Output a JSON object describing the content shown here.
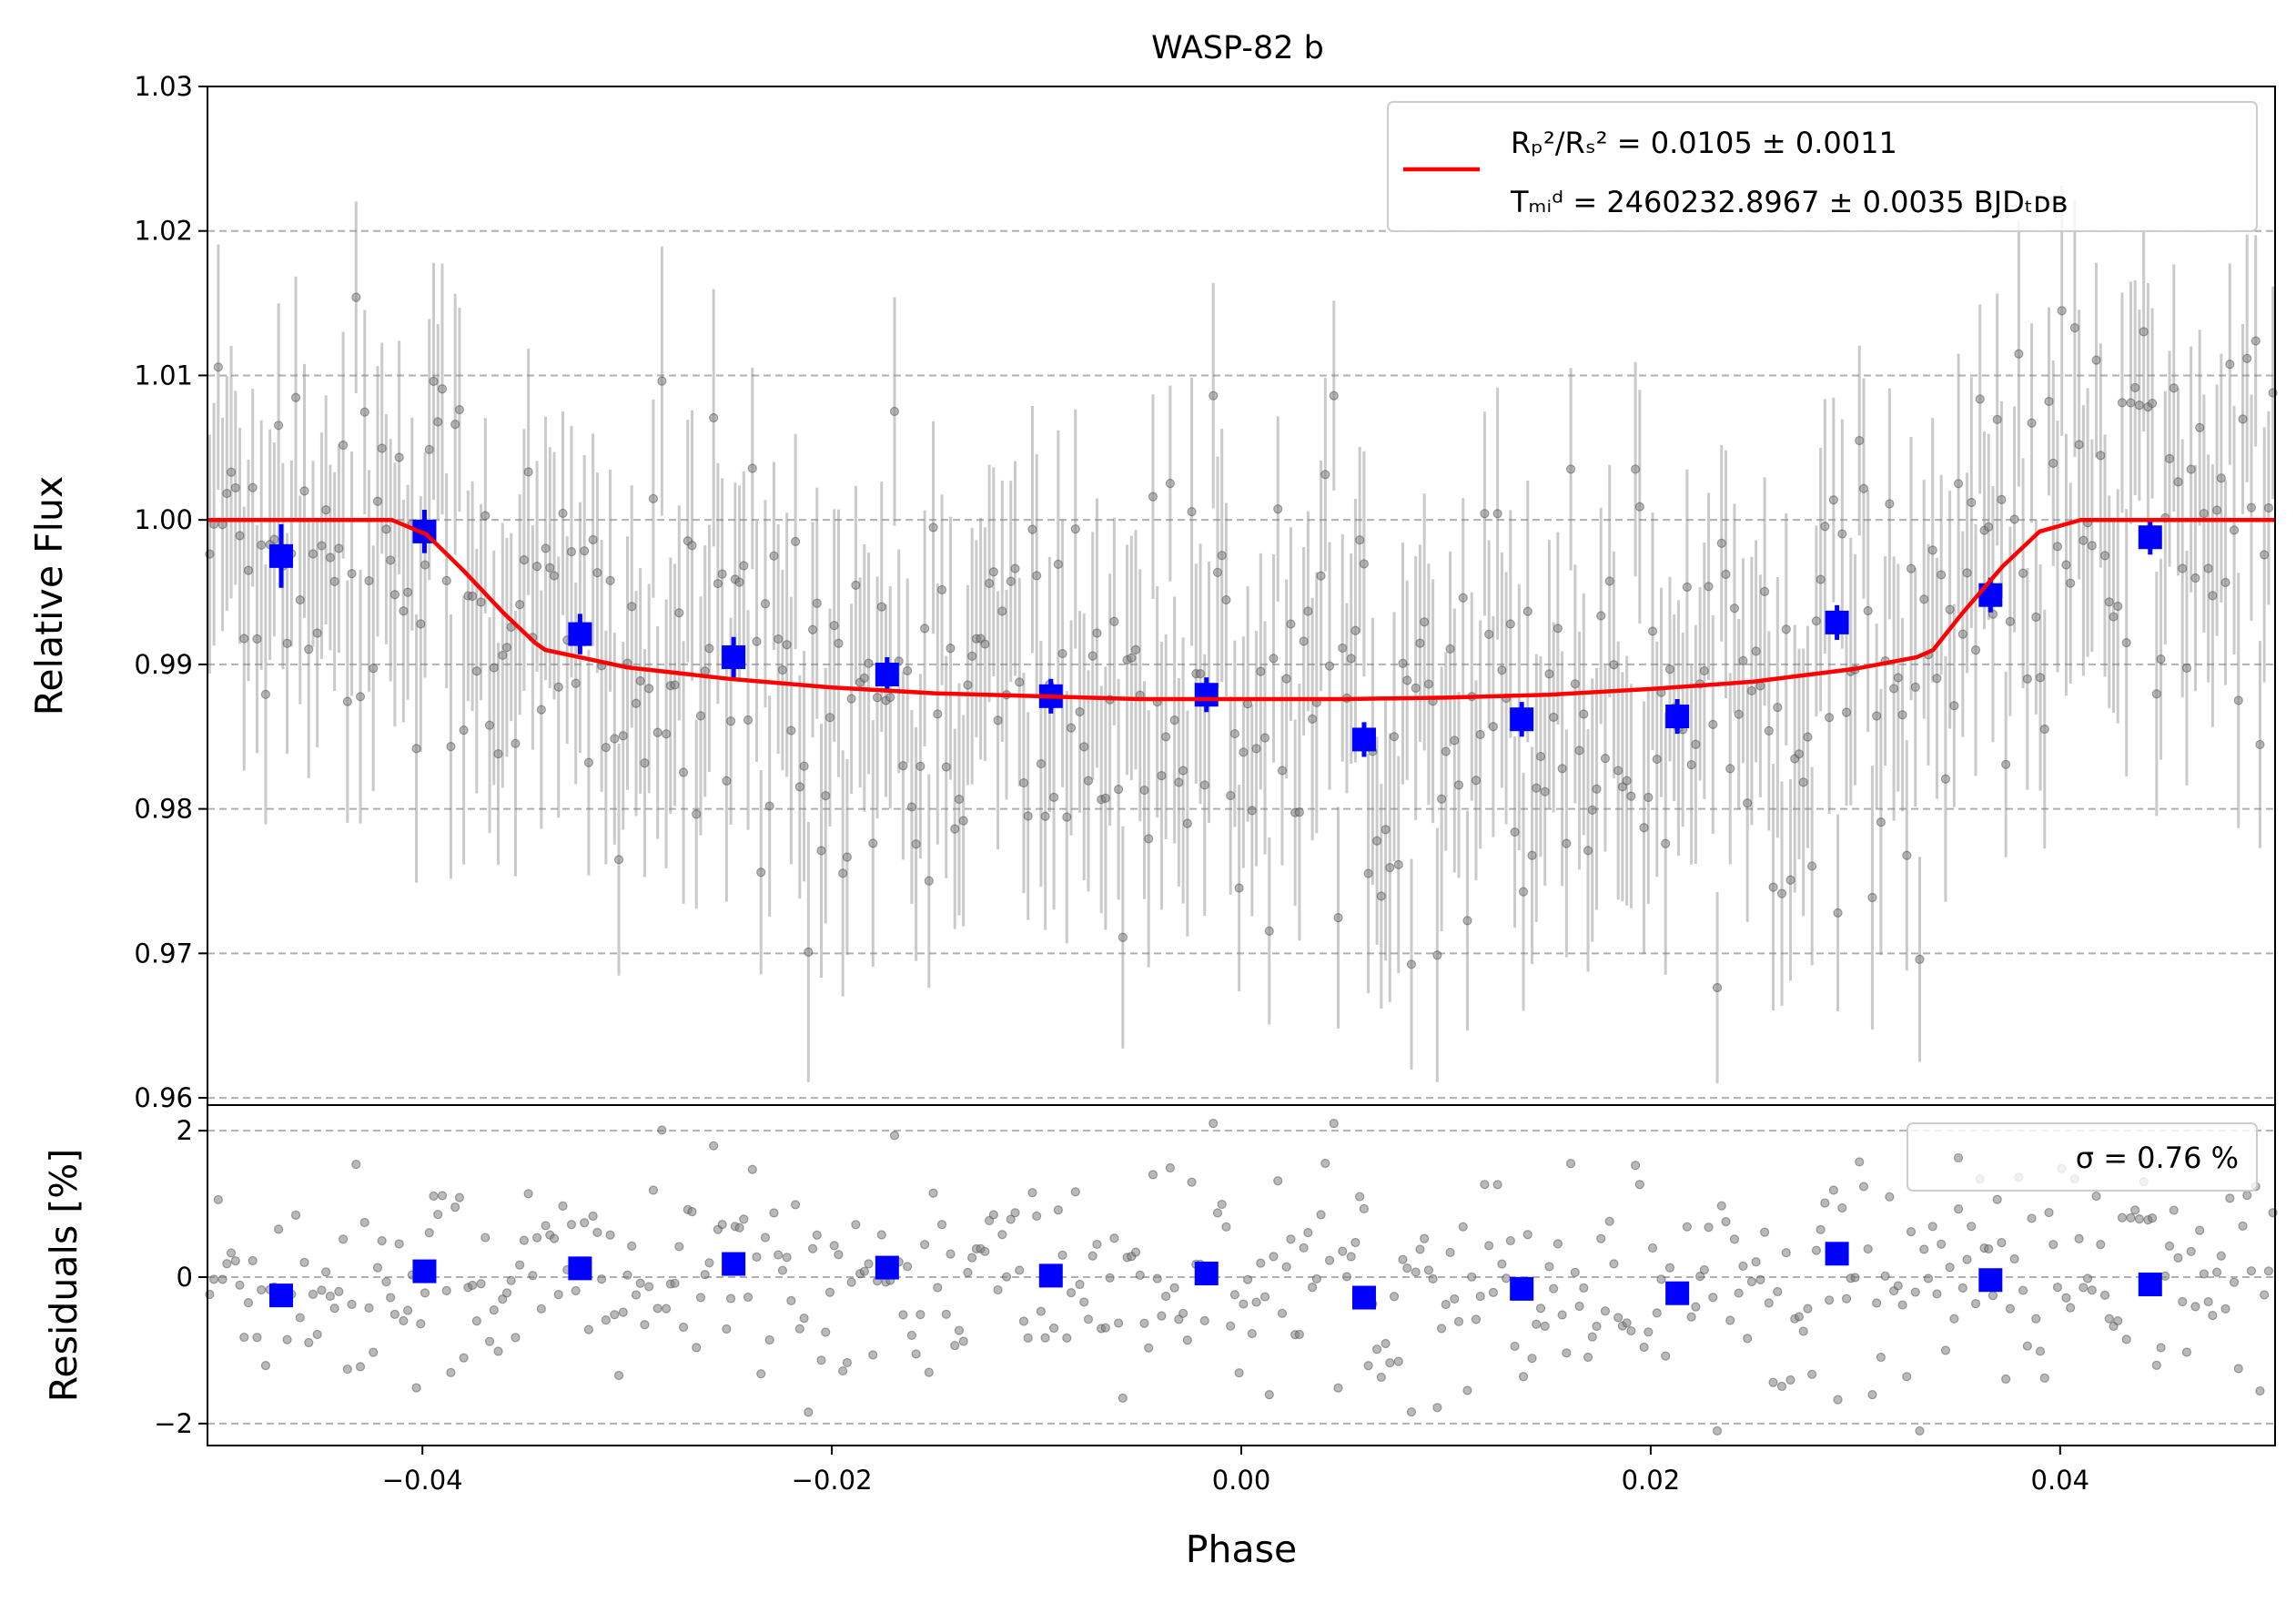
{
  "chart_data": {
    "type": "scatter",
    "title": "WASP-82 b",
    "xlabel": "Phase",
    "main_panel": {
      "ylabel": "Relative Flux",
      "xlim": [
        -0.0505,
        0.0505
      ],
      "ylim": [
        0.9595,
        1.03
      ],
      "x_ticks": [
        -0.04,
        -0.02,
        0.0,
        0.02,
        0.04
      ],
      "x_tick_labels": [
        "−0.04",
        "−0.02",
        "0.00",
        "0.02",
        "0.04"
      ],
      "y_ticks": [
        0.96,
        0.97,
        0.98,
        0.99,
        1.0,
        1.01,
        1.02,
        1.03
      ],
      "y_tick_labels": [
        "0.96",
        "0.97",
        "0.98",
        "0.99",
        "1.00",
        "1.01",
        "1.02",
        "1.03"
      ],
      "grid": "horizontal dashed",
      "legend_placement": "top-right",
      "legend_lines": [
        {
          "label": "Rₚ²/Rₛ² = 0.0105 ± 0.0011"
        },
        {
          "label": "Tₘᵢᵈ = 2460232.8967 ± 0.0035 BJDₜᴅʙ"
        }
      ],
      "model": {
        "color": "#ff0000",
        "x": [
          -0.0505,
          -0.0415,
          -0.0398,
          -0.038,
          -0.036,
          -0.0345,
          -0.034,
          -0.03,
          -0.025,
          -0.02,
          -0.015,
          -0.01,
          -0.005,
          0.0,
          0.005,
          0.01,
          0.015,
          0.02,
          0.025,
          0.03,
          0.033,
          0.0338,
          0.0352,
          0.0372,
          0.039,
          0.041,
          0.0505
        ],
        "y": [
          1.0,
          1.0,
          0.999,
          0.9965,
          0.9935,
          0.9915,
          0.991,
          0.9898,
          0.989,
          0.9884,
          0.988,
          0.9878,
          0.9876,
          0.9876,
          0.9876,
          0.9877,
          0.9879,
          0.9883,
          0.9888,
          0.9897,
          0.9905,
          0.991,
          0.9935,
          0.9968,
          0.9992,
          1.0,
          1.0
        ]
      },
      "binned": {
        "color": "#0000ff",
        "x": [
          -0.0469,
          -0.0399,
          -0.0323,
          -0.0248,
          -0.0173,
          -0.0093,
          -0.0017,
          0.006,
          0.0137,
          0.0213,
          0.0291,
          0.0366,
          0.0444
        ],
        "y": [
          0.9975,
          0.9992,
          0.9921,
          0.9905,
          0.9893,
          0.9878,
          0.9879,
          0.9848,
          0.9862,
          0.9864,
          0.9929,
          0.9948,
          0.9988
        ],
        "yerr": [
          0.0022,
          0.0015,
          0.0014,
          0.0014,
          0.0012,
          0.0012,
          0.0012,
          0.0012,
          0.0012,
          0.0012,
          0.0012,
          0.0012,
          0.0012
        ]
      },
      "raw_points": {
        "color": "#000000",
        "count": 480,
        "typical_yerr": 0.0075,
        "scatter_pct": 0.76
      }
    },
    "residual_panel": {
      "ylabel": "Residuals [%]",
      "ylim": [
        -2.3,
        2.35
      ],
      "y_ticks": [
        -2,
        0,
        2
      ],
      "y_tick_labels": [
        "−2",
        "0",
        "2"
      ],
      "legend_label": "σ = 0.76 %",
      "legend_placement": "top-right",
      "binned": {
        "color": "#0000ff",
        "x": [
          -0.0469,
          -0.0399,
          -0.0323,
          -0.0248,
          -0.0173,
          -0.0093,
          -0.0017,
          0.006,
          0.0137,
          0.0213,
          0.0291,
          0.0366,
          0.0444
        ],
        "y": [
          -0.25,
          0.08,
          0.12,
          0.18,
          0.13,
          0.02,
          0.05,
          -0.28,
          -0.16,
          -0.22,
          0.32,
          -0.04,
          -0.1
        ]
      }
    }
  }
}
